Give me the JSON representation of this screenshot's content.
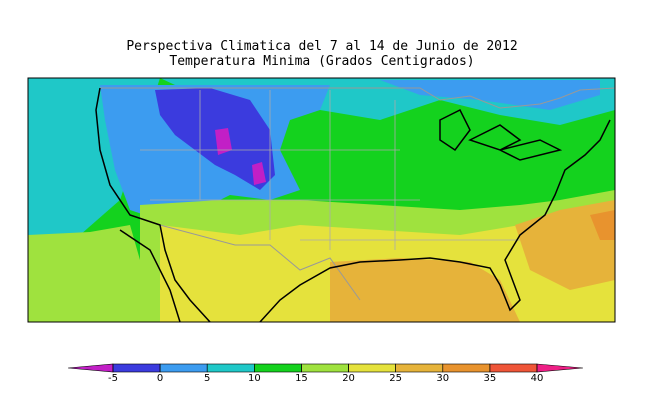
{
  "title": [
    "Perspectiva Climatica del 7 al 14 de Junio de 2012",
    "Temperatura Minima (Grados Centigrados)"
  ],
  "colorbar": {
    "ticks": [
      -5,
      0,
      5,
      10,
      15,
      20,
      25,
      30,
      35,
      40
    ],
    "colors": [
      "#c21fc6",
      "#3b3bde",
      "#3c9cf0",
      "#1fc8c8",
      "#14d21e",
      "#9fe23e",
      "#e5e23c",
      "#e6b33a",
      "#e8932e",
      "#ef5538",
      "#ee1f86"
    ]
  }
}
